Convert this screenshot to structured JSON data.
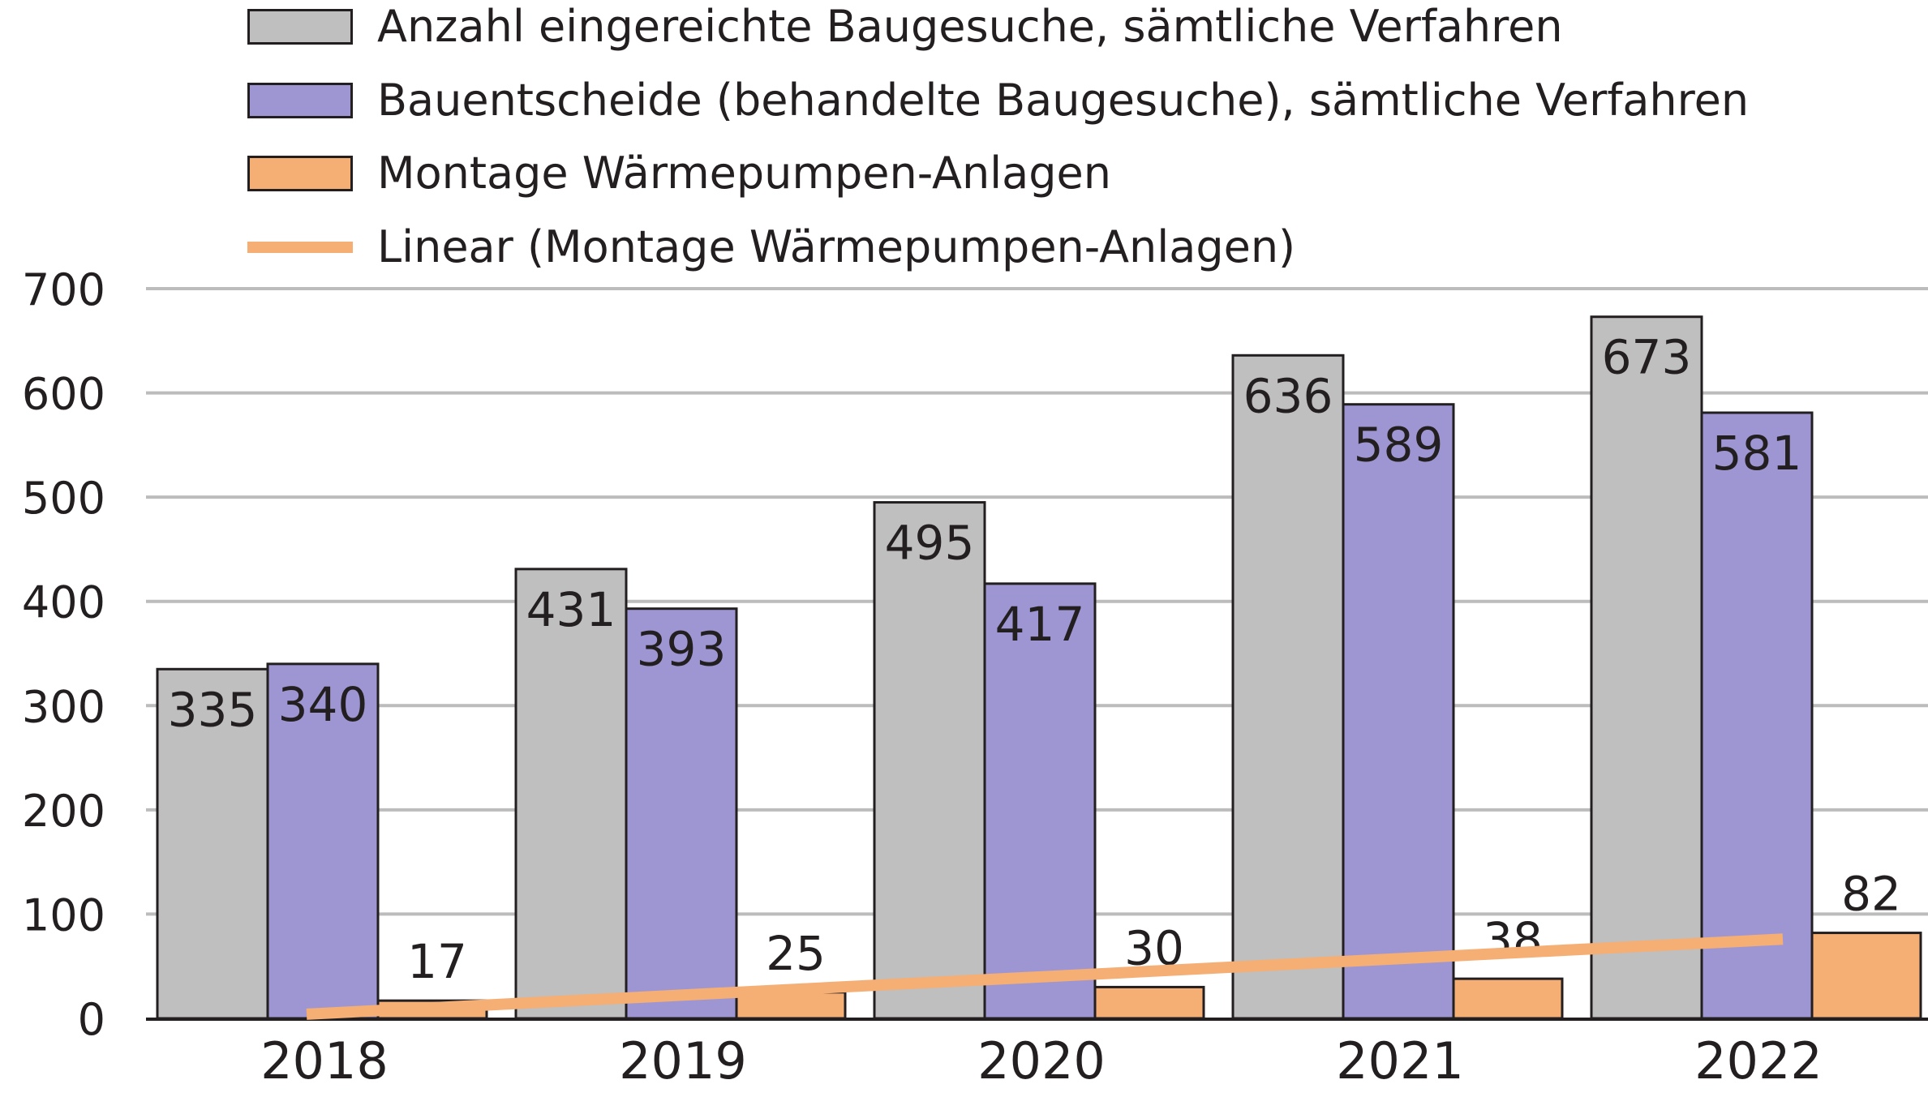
{
  "chart_data": {
    "type": "bar",
    "title": "",
    "xlabel": "",
    "ylabel": "",
    "categories": [
      "2018",
      "2019",
      "2020",
      "2021",
      "2022"
    ],
    "ylim": [
      0,
      700
    ],
    "yticks": [
      "0",
      "100",
      "200",
      "300",
      "400",
      "500",
      "600",
      "700"
    ],
    "grid": true,
    "legend_position": "top",
    "series": [
      {
        "name": "Anzahl eingereichte Baugesuche, sämtliche Verfahren",
        "values": [
          335,
          431,
          495,
          636,
          673
        ],
        "labels": [
          "335",
          "431",
          "495",
          "636",
          "673"
        ],
        "color": "#bfbfbf"
      },
      {
        "name": "Bauentscheide (behandelte Baugesuche), sämtliche Verfahren",
        "values": [
          340,
          393,
          417,
          589,
          581
        ],
        "labels": [
          "340",
          "393",
          "417",
          "589",
          "581"
        ],
        "color": "#9d96d2"
      },
      {
        "name": "Montage Wärmepumpen-Anlagen",
        "values": [
          17,
          25,
          30,
          38,
          82
        ],
        "labels": [
          "17",
          "25",
          "30",
          "38",
          "82"
        ],
        "color": "#f5ae74"
      }
    ],
    "trendline": {
      "name": "Linear (Montage Wärmepumpen-Anlagen)",
      "of_series": "Montage Wärmepumpen-Anlagen",
      "type": "linear",
      "start": 4,
      "end": 76,
      "color": "#f5ae74"
    }
  }
}
